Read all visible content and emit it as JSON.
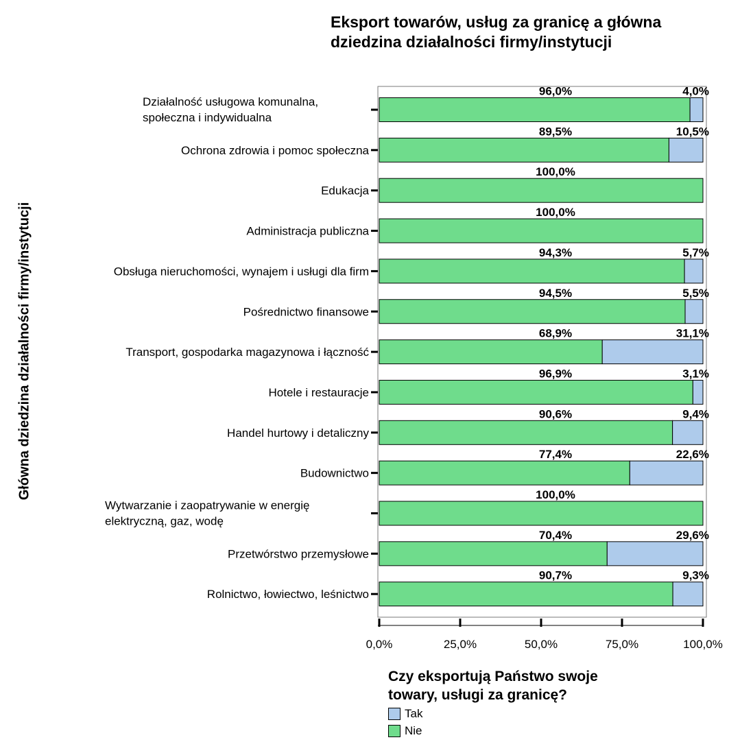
{
  "chart_data": {
    "type": "bar",
    "orientation": "horizontal",
    "stacked": true,
    "title": "Eksport towarów, usług za granicę a główna\ndziedzina działalności firmy/instytucji",
    "ylabel": "Główna dziedzina działalności firmy/instytucji",
    "xlabel": "",
    "xlim": [
      0,
      100
    ],
    "x_ticks": [
      "0,0%",
      "25,0%",
      "50,0%",
      "75,0%",
      "100,0%"
    ],
    "categories": [
      "Działalność usługowa komunalna,\nspołeczna i indywidualna",
      "Ochrona zdrowia i pomoc społeczna",
      "Edukacja",
      "Administracja publiczna",
      "Obsługa nieruchomości, wynajem i usługi dla firm",
      "Pośrednictwo finansowe",
      "Transport, gospodarka magazynowa i łączność",
      "Hotele i restauracje",
      "Handel hurtowy i detaliczny",
      "Budownictwo",
      "Wytwarzanie i zaopatrywanie w energię\nelektryczną, gaz, wodę",
      "Przetwórstwo przemysłowe",
      "Rolnictwo, łowiectwo, leśnictwo"
    ],
    "series": [
      {
        "name": "Nie",
        "color": "#6fdc8c",
        "values": [
          96.0,
          89.5,
          100.0,
          100.0,
          94.3,
          94.5,
          68.9,
          96.9,
          90.6,
          77.4,
          100.0,
          70.4,
          90.7
        ],
        "labels": [
          "96,0%",
          "89,5%",
          "100,0%",
          "100,0%",
          "94,3%",
          "94,5%",
          "68,9%",
          "96,9%",
          "90,6%",
          "77,4%",
          "100,0%",
          "70,4%",
          "90,7%"
        ]
      },
      {
        "name": "Tak",
        "color": "#aecbeb",
        "values": [
          4.0,
          10.5,
          0,
          0,
          5.7,
          5.5,
          31.1,
          3.1,
          9.4,
          22.6,
          0,
          29.6,
          9.3
        ],
        "labels": [
          "4,0%",
          "10,5%",
          "",
          "",
          "5,7%",
          "5,5%",
          "31,1%",
          "3,1%",
          "9,4%",
          "22,6%",
          "",
          "29,6%",
          "9,3%"
        ]
      }
    ],
    "legend": {
      "title": "Czy eksportują Państwo swoje\ntowary, usługi za granicę?",
      "position": "bottom-right",
      "items": [
        {
          "label": "Tak",
          "color": "#aecbeb"
        },
        {
          "label": "Nie",
          "color": "#6fdc8c"
        }
      ]
    },
    "grid": false
  }
}
